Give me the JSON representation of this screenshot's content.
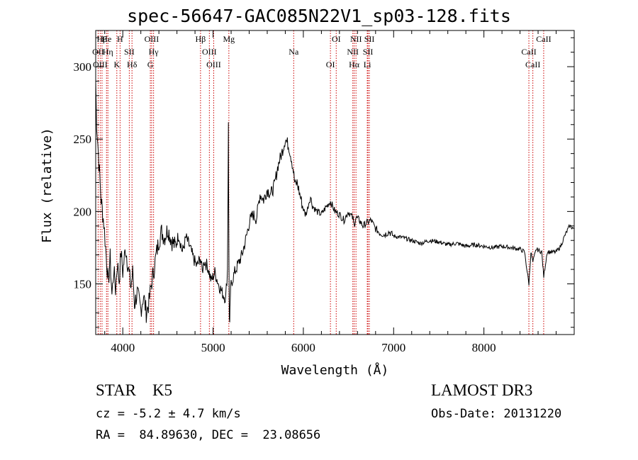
{
  "header": {
    "title": "spec-56647-GAC085N22V1_sp03-128.fits"
  },
  "info": {
    "object_line": "STAR    K5",
    "survey": "LAMOST DR3",
    "cz": "cz = -5.2 ± 4.7 km/s",
    "obs_date": "Obs-Date: 20131220",
    "radec": "RA =  84.89630, DEC =  23.08656"
  },
  "chart_data": {
    "type": "line",
    "xlabel": "Wavelength (Å)",
    "ylabel": "Flux (relative)",
    "xlim": [
      3700,
      9000
    ],
    "ylim": [
      115,
      325
    ],
    "xticks": [
      4000,
      5000,
      6000,
      7000,
      8000
    ],
    "xtick_labels": [
      "4000",
      "5000",
      "6000",
      "7000",
      "8000"
    ],
    "yticks": [
      150,
      200,
      250,
      300
    ],
    "ytick_labels": [
      "150",
      "200",
      "250",
      "300"
    ],
    "grid": false,
    "line_color": "#000000",
    "marker_color": "#cc0000",
    "series": [
      {
        "x": [
          3700,
          3710,
          3730,
          3760,
          3790,
          3810,
          3840,
          3860,
          3880,
          3900,
          3920,
          3940,
          3960,
          3980,
          4000,
          4030,
          4060,
          4090,
          4110,
          4130,
          4160,
          4200,
          4230,
          4260,
          4290,
          4310,
          4340,
          4370,
          4400,
          4430,
          4460,
          4500,
          4540,
          4580,
          4620,
          4660,
          4700,
          4740,
          4780,
          4820,
          4860,
          4880,
          4900,
          4940,
          4980,
          5020,
          5060,
          5100,
          5140,
          5160,
          5170,
          5175,
          5180,
          5185,
          5190,
          5200,
          5240,
          5280,
          5320,
          5360,
          5400,
          5440,
          5480,
          5520,
          5560,
          5600,
          5640,
          5680,
          5720,
          5760,
          5800,
          5840,
          5870,
          5890,
          5900,
          5910,
          5930,
          5960,
          5990,
          6020,
          6040,
          6060,
          6080,
          6100,
          6150,
          6200,
          6250,
          6300,
          6350,
          6400,
          6450,
          6500,
          6550,
          6563,
          6580,
          6620,
          6660,
          6700,
          6750,
          6800,
          6850,
          6900,
          6950,
          7000,
          7100,
          7200,
          7300,
          7400,
          7500,
          7600,
          7700,
          7800,
          7900,
          8000,
          8100,
          8200,
          8300,
          8400,
          8450,
          8498,
          8520,
          8542,
          8580,
          8640,
          8662,
          8700,
          8750,
          8800,
          8850,
          8900,
          8950,
          9000
        ],
        "y": [
          290,
          262,
          240,
          208,
          192,
          175,
          150,
          168,
          142,
          160,
          146,
          165,
          152,
          172,
          158,
          175,
          162,
          148,
          158,
          136,
          144,
          132,
          142,
          130,
          137,
          147,
          158,
          170,
          180,
          186,
          182,
          188,
          180,
          176,
          184,
          172,
          182,
          176,
          168,
          162,
          168,
          158,
          166,
          162,
          152,
          158,
          150,
          144,
          140,
          160,
          263,
          170,
          128,
          120,
          140,
          150,
          158,
          164,
          170,
          180,
          192,
          198,
          195,
          212,
          208,
          215,
          212,
          218,
          232,
          240,
          250,
          245,
          236,
          228,
          222,
          218,
          220,
          212,
          204,
          198,
          200,
          206,
          210,
          204,
          200,
          198,
          203,
          207,
          200,
          198,
          194,
          200,
          195,
          190,
          196,
          194,
          190,
          192,
          194,
          188,
          185,
          184,
          186,
          183,
          182,
          180,
          178,
          180,
          179,
          177,
          178,
          176,
          177,
          176,
          175,
          176,
          175,
          174,
          172,
          150,
          172,
          165,
          174,
          172,
          155,
          172,
          172,
          172,
          176,
          184,
          190,
          188
        ]
      }
    ],
    "line_markers": [
      {
        "label": "Hβ",
        "x": 3770
      },
      {
        "label": "OII",
        "x": 3727
      },
      {
        "label": "OIII",
        "x": 3750
      },
      {
        "label": "He",
        "x": 3820
      },
      {
        "label": "Hη",
        "x": 3835
      },
      {
        "label": "K",
        "x": 3934
      },
      {
        "label": "H",
        "x": 3970
      },
      {
        "label": "SII",
        "x": 4072
      },
      {
        "label": "Hδ",
        "x": 4102
      },
      {
        "label": "OIII",
        "x": 4320
      },
      {
        "label": "Hγ",
        "x": 4341
      },
      {
        "label": "G",
        "x": 4305
      },
      {
        "label": "Hβ",
        "x": 4861
      },
      {
        "label": "OIII",
        "x": 4959
      },
      {
        "label": "OIII",
        "x": 5007
      },
      {
        "label": "Mg",
        "x": 5175
      },
      {
        "label": "Na",
        "x": 5893
      },
      {
        "label": "OI",
        "x": 6300
      },
      {
        "label": "OI",
        "x": 6364
      },
      {
        "label": "NII",
        "x": 6548
      },
      {
        "label": "Hα",
        "x": 6563
      },
      {
        "label": "NII",
        "x": 6583
      },
      {
        "label": "SII",
        "x": 6716
      },
      {
        "label": "Li",
        "x": 6708
      },
      {
        "label": "SII",
        "x": 6731
      },
      {
        "label": "CaII",
        "x": 8498
      },
      {
        "label": "CaII",
        "x": 8542
      },
      {
        "label": "CaII",
        "x": 8662
      }
    ]
  }
}
